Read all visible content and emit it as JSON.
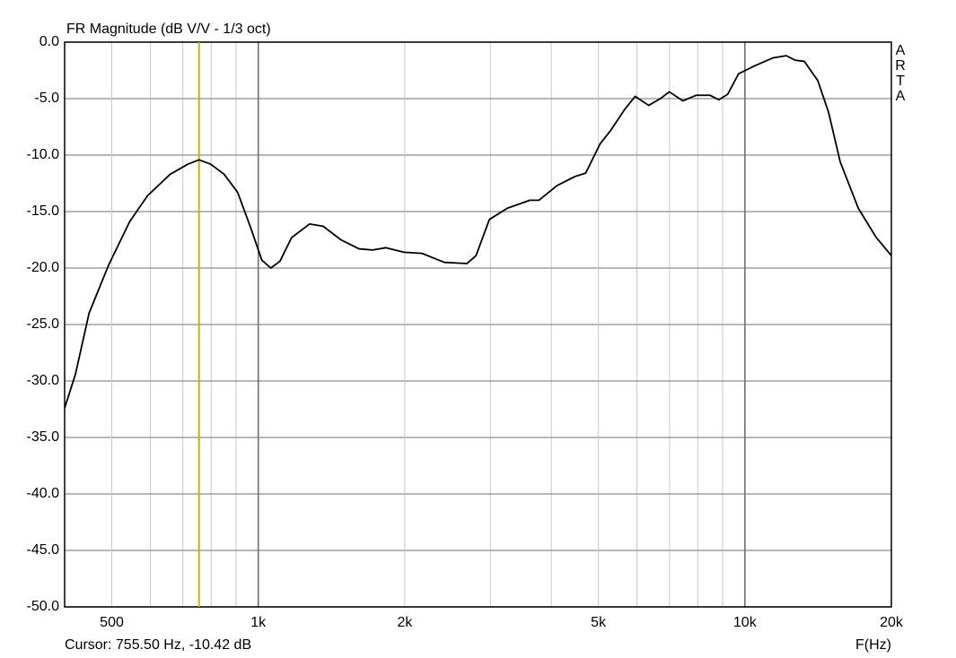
{
  "chart_data": {
    "type": "line",
    "title": "FR Magnitude (dB V/V - 1/3 oct)",
    "x_label": "F(Hz)",
    "watermark": "ARTA",
    "cursor_label": "Cursor: 755.50 Hz, -10.42 dB",
    "cursor_x": 755.5,
    "cursor_color": "#c8b400",
    "xscale": "log",
    "grid": true,
    "xlim": [
      400,
      20000
    ],
    "xticks": [
      500,
      {
        "value": 1000,
        "label": "1k"
      },
      {
        "value": 2000,
        "label": "2k"
      },
      {
        "value": 5000,
        "label": "5k"
      },
      {
        "value": 10000,
        "label": "10k"
      },
      {
        "value": 20000,
        "label": "20k"
      }
    ],
    "x_minor_grid": [
      600,
      700,
      800,
      900,
      3000,
      4000,
      6000,
      7000,
      8000,
      9000
    ],
    "ylim": [
      -50,
      0
    ],
    "yticks": [
      {
        "value": 0,
        "label": "0.0"
      },
      {
        "value": -5,
        "label": "-5.0"
      },
      {
        "value": -10,
        "label": "-10.0"
      },
      {
        "value": -15,
        "label": "-15.0"
      },
      {
        "value": -20,
        "label": "-20.0"
      },
      {
        "value": -25,
        "label": "-25.0"
      },
      {
        "value": -30,
        "label": "-30.0"
      },
      {
        "value": -35,
        "label": "-35.0"
      },
      {
        "value": -40,
        "label": "-40.0"
      },
      {
        "value": -45,
        "label": "-45.0"
      },
      {
        "value": -50,
        "label": "-50.0"
      }
    ],
    "color": "#000000",
    "x": [
      400,
      421,
      449,
      493,
      544,
      592,
      659,
      717,
      755.5,
      798,
      851,
      907,
      966,
      1017,
      1061,
      1108,
      1171,
      1275,
      1359,
      1479,
      1611,
      1717,
      1830,
      1993,
      2170,
      2413,
      2685,
      2802,
      2985,
      3251,
      3615,
      3773,
      4110,
      4474,
      4708,
      5041,
      5303,
      5653,
      5950,
      6342,
      6704,
      6995,
      7456,
      7948,
      8473,
      8840,
      9225,
      9706,
      10478,
      11409,
      12162,
      12693,
      13245,
      14118,
      14856,
      15700,
      17100,
      18620,
      20000
    ],
    "values": [
      -32.4,
      -29.4,
      -24.0,
      -19.7,
      -15.9,
      -13.6,
      -11.7,
      -10.8,
      -10.42,
      -10.8,
      -11.7,
      -13.3,
      -16.5,
      -19.3,
      -20.0,
      -19.4,
      -17.3,
      -16.1,
      -16.3,
      -17.5,
      -18.3,
      -18.4,
      -18.2,
      -18.6,
      -18.7,
      -19.5,
      -19.6,
      -18.9,
      -15.7,
      -14.7,
      -14.0,
      -14.0,
      -12.7,
      -11.9,
      -11.6,
      -9.0,
      -7.8,
      -6.0,
      -4.8,
      -5.6,
      -5.0,
      -4.4,
      -5.2,
      -4.7,
      -4.7,
      -5.1,
      -4.6,
      -2.8,
      -2.1,
      -1.4,
      -1.2,
      -1.6,
      -1.7,
      -3.4,
      -6.2,
      -10.6,
      -14.7,
      -17.3,
      -18.9
    ]
  }
}
